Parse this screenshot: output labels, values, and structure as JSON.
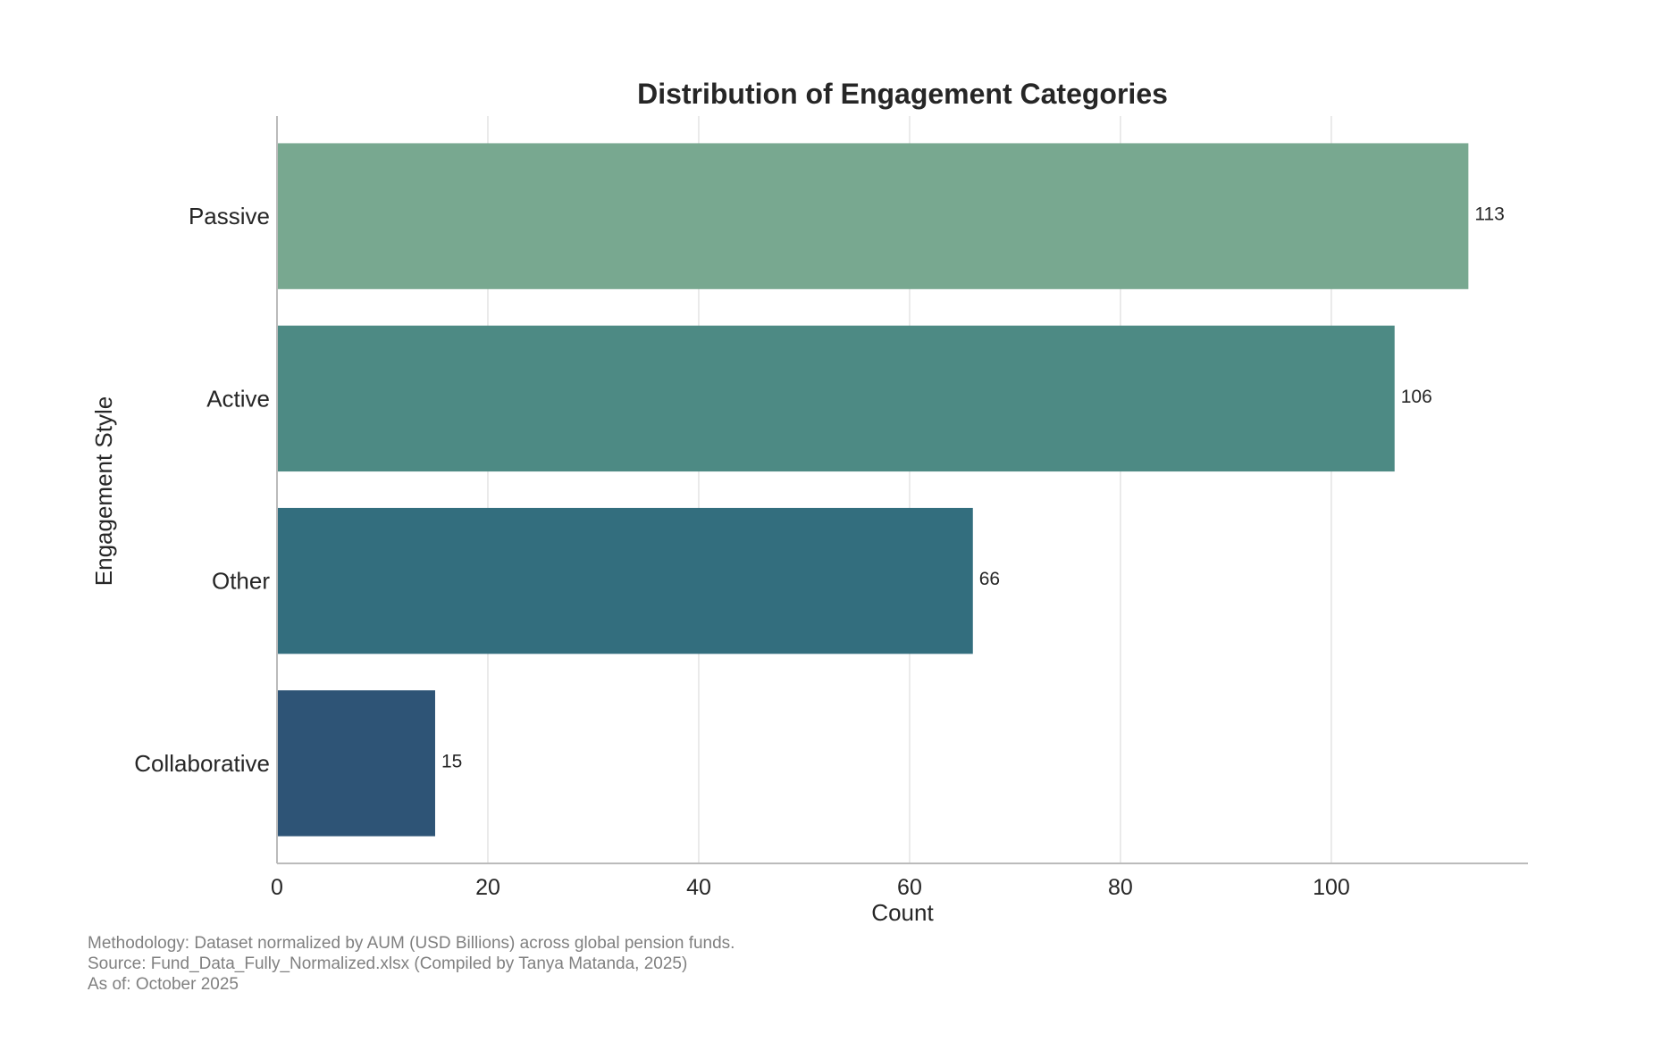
{
  "chart_data": {
    "type": "bar",
    "orientation": "horizontal",
    "title": "Distribution of Engagement Categories",
    "xlabel": "Count",
    "ylabel": "Engagement Style",
    "categories": [
      "Passive",
      "Active",
      "Other",
      "Collaborative"
    ],
    "values": [
      113,
      106,
      66,
      15
    ],
    "data_labels": [
      "113",
      "106",
      "66",
      "15"
    ],
    "colors": [
      "#78a890",
      "#4d8a84",
      "#336e7e",
      "#2e5476"
    ],
    "xlim": [
      0,
      118.65
    ],
    "xticks": [
      0,
      20,
      40,
      60,
      80,
      100
    ],
    "xtick_labels": [
      "0",
      "20",
      "40",
      "60",
      "80",
      "100"
    ],
    "grid": true,
    "legend": "none"
  },
  "footnotes": {
    "methodology": "Methodology: Dataset normalized by AUM (USD Billions) across global pension funds.",
    "source": "Source: Fund_Data_Fully_Normalized.xlsx (Compiled by Tanya Matanda, 2025)",
    "as_of": "As of: October 2025"
  },
  "colors": {
    "text": "#262626",
    "grid": "#dddddd",
    "axis": "#bbbbbb",
    "footnote": "#808080"
  }
}
